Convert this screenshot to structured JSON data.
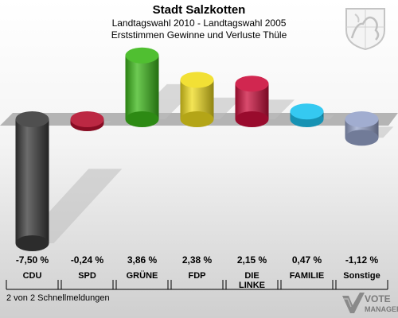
{
  "header": {
    "title": "Stadt Salzkotten",
    "subtitle": "Landtagswahl 2010 - Landtagswahl 2005",
    "subtitle2": "Erststimmen Gewinne und Verluste Thüle"
  },
  "footer": {
    "note": "2 von 2 Schnellmeldungen"
  },
  "brand": {
    "line1": "VOTE",
    "line2": "MANAGER"
  },
  "chart_data": {
    "type": "bar",
    "categories": [
      "CDU",
      "SPD",
      "GRÜNE",
      "FDP",
      "DIE LINKE",
      "FAMILIE",
      "Sonstige"
    ],
    "values": [
      -7.5,
      -0.24,
      3.86,
      2.38,
      2.15,
      0.47,
      -1.12
    ],
    "value_labels": [
      "-7,50 %",
      "-0,24 %",
      "3,86 %",
      "2,38 %",
      "2,15 %",
      "0,47 %",
      "-1,12 %"
    ],
    "colors": [
      "#3b3b3b",
      "#b5102e",
      "#3cb81a",
      "#f0dc1e",
      "#cc0f3c",
      "#1ec3ef",
      "#97a4cb"
    ]
  }
}
